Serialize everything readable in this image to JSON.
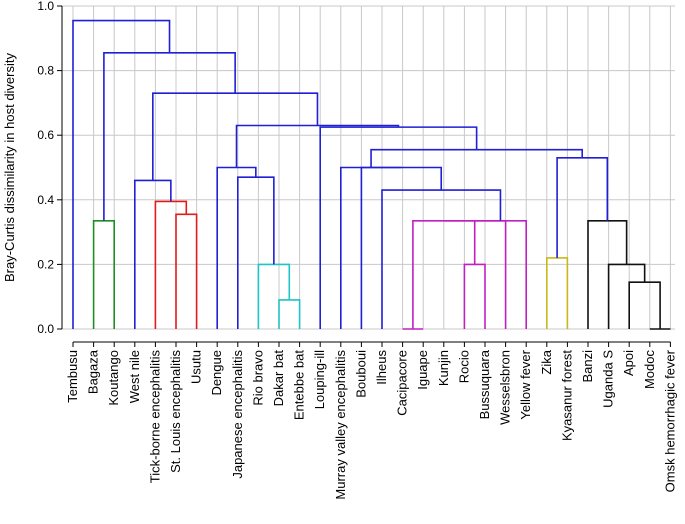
{
  "chart_data": {
    "type": "dendrogram",
    "title": "",
    "xlabel": "",
    "ylabel": "Bray-Curtis dissimilarity in host diversity",
    "ylim": [
      0,
      1
    ],
    "yticks": [
      "0.0",
      "0.2",
      "0.4",
      "0.6",
      "0.8",
      "1.0"
    ],
    "grid": true,
    "leaves": [
      "Tembusu",
      "Bagaza",
      "Koutango",
      "West nile",
      "Tick-borne encephalitis",
      "St. Louis encephalitis",
      "Usutu",
      "Dengue",
      "Japanese encephalitis",
      "Rio bravo",
      "Dakar bat",
      "Entebbe bat",
      "Louping-ill",
      "Murray valley encephalitis",
      "Bouboui",
      "Ilheus",
      "Cacipacore",
      "Iguape",
      "Kunjin",
      "Rocio",
      "Bussuquara",
      "Wesselsbron",
      "Yellow fever",
      "Zika",
      "Kyasanur forest",
      "Banzi",
      "Uganda S",
      "Apoi",
      "Modoc",
      "Omsk hemorrhagic fever"
    ],
    "colors": {
      "blue": "#1f1fd6",
      "green": "#1f8f1f",
      "red": "#e21b1b",
      "cyan": "#1fc3c8",
      "magenta": "#c21fc2",
      "yellow": "#c8b81a",
      "black": "#111111"
    },
    "merges": [
      {
        "a": 10,
        "b": 11,
        "height": 0.09,
        "color": "cyan"
      },
      {
        "a": 9,
        "b": 30,
        "height": 0.2,
        "color": "cyan"
      },
      {
        "a": 8,
        "b": 31,
        "height": 0.47,
        "color": "blue"
      },
      {
        "a": 7,
        "b": 32,
        "height": 0.5,
        "color": "blue"
      },
      {
        "a": 1,
        "b": 2,
        "height": 0.335,
        "color": "green"
      },
      {
        "a": 5,
        "b": 6,
        "height": 0.355,
        "color": "red"
      },
      {
        "a": 4,
        "b": 35,
        "height": 0.395,
        "color": "red"
      },
      {
        "a": 3,
        "b": 36,
        "height": 0.46,
        "color": "blue"
      },
      {
        "a": 16,
        "b": 17,
        "height": 0.0,
        "color": "magenta"
      },
      {
        "a": 19,
        "b": 20,
        "height": 0.2,
        "color": "magenta"
      },
      {
        "a": 38,
        "b": 39,
        "height": 0.335,
        "color": "magenta"
      },
      {
        "a": 40,
        "b": 21,
        "height": 0.335,
        "color": "magenta"
      },
      {
        "a": 41,
        "b": 22,
        "height": 0.335,
        "color": "magenta"
      },
      {
        "a": 15,
        "b": 42,
        "height": 0.43,
        "color": "blue"
      },
      {
        "a": 14,
        "b": 43,
        "height": 0.5,
        "color": "blue"
      },
      {
        "a": 13,
        "b": 44,
        "height": 0.5,
        "color": "blue"
      },
      {
        "a": 23,
        "b": 24,
        "height": 0.22,
        "color": "yellow"
      },
      {
        "a": 29,
        "b": 28,
        "height": 0.0,
        "color": "black"
      },
      {
        "a": 27,
        "b": 47,
        "height": 0.145,
        "color": "black"
      },
      {
        "a": 26,
        "b": 48,
        "height": 0.2,
        "color": "black"
      },
      {
        "a": 25,
        "b": 49,
        "height": 0.335,
        "color": "black"
      },
      {
        "a": 46,
        "b": 50,
        "height": 0.53,
        "color": "blue"
      },
      {
        "a": 45,
        "b": 51,
        "height": 0.555,
        "color": "blue"
      },
      {
        "a": 12,
        "b": 52,
        "height": 0.625,
        "color": "blue"
      },
      {
        "a": 33,
        "b": 53,
        "height": 0.63,
        "color": "blue"
      },
      {
        "a": 37,
        "b": 54,
        "height": 0.73,
        "color": "blue"
      },
      {
        "a": 34,
        "b": 55,
        "height": 0.855,
        "color": "blue"
      },
      {
        "a": 0,
        "b": 56,
        "height": 0.955,
        "color": "blue"
      }
    ]
  }
}
